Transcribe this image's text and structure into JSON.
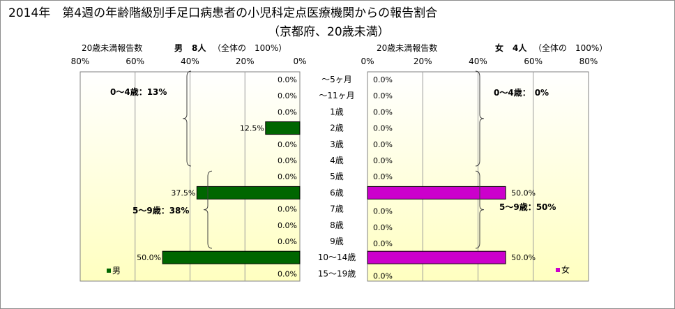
{
  "title": "2014年　第4週の年齢階級別手足口病患者の小児科定点医療機関からの報告割合",
  "subtitle": "（京都府、20歳未満）",
  "left_panel": {
    "ylabel": "20歳未満報告数",
    "gender": "男",
    "count": "8人",
    "total_note": "（全体の　100%）",
    "legend": "男",
    "group_labels": [
      "0～4歳：13%",
      "5～9歳：38%"
    ]
  },
  "right_panel": {
    "ylabel": "20歳未満報告数",
    "gender": "女",
    "count": "4人",
    "total_note": "（全体の　100%）",
    "legend": "女",
    "group_labels": [
      "0～4歳：　0%",
      "5～9歳：50%"
    ]
  },
  "colors": {
    "male": "#006600",
    "female": "#cc00cc",
    "bg_top": "#ffffff",
    "bg_bottom": "#ffffc0"
  },
  "chart_data": {
    "type": "bar",
    "orientation": "horizontal-butterfly",
    "categories": [
      "～5ヶ月",
      "～11ヶ月",
      "1歳",
      "2歳",
      "3歳",
      "4歳",
      "5歳",
      "6歳",
      "7歳",
      "8歳",
      "9歳",
      "10～14歳",
      "15～19歳"
    ],
    "series": [
      {
        "name": "男",
        "values": [
          0.0,
          0.0,
          0.0,
          12.5,
          0.0,
          0.0,
          0.0,
          37.5,
          0.0,
          0.0,
          0.0,
          50.0,
          0.0
        ]
      },
      {
        "name": "女",
        "values": [
          0.0,
          0.0,
          0.0,
          0.0,
          0.0,
          0.0,
          0.0,
          50.0,
          0.0,
          0.0,
          0.0,
          50.0,
          0.0
        ]
      }
    ],
    "data_labels": {
      "male": [
        "0.0%",
        "0.0%",
        "0.0%",
        "12.5%",
        "0.0%",
        "0.0%",
        "0.0%",
        "37.5%",
        "0.0%",
        "0.0%",
        "0.0%",
        "50.0%",
        "0.0%"
      ],
      "female": [
        "0.0%",
        "0.0%",
        "0.0%",
        "0.0%",
        "0.0%",
        "0.0%",
        "0.0%",
        "50.0%",
        "0.0%",
        "0.0%",
        "0.0%",
        "50.0%",
        "0.0%"
      ]
    },
    "xlim": [
      0,
      80
    ],
    "x_ticks": [
      "0%",
      "20%",
      "40%",
      "60%",
      "80%"
    ],
    "grid": true,
    "legend_position": "bottom-left / bottom-right"
  }
}
